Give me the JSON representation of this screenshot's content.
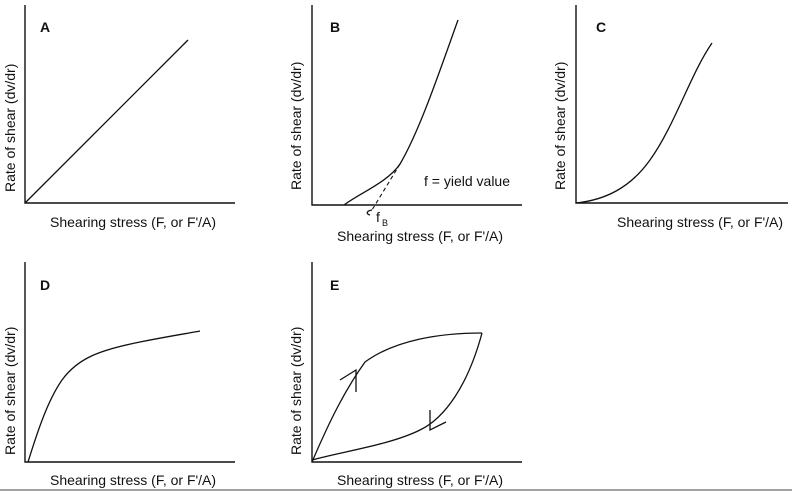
{
  "panels": [
    {
      "letter": "A",
      "ylabel": "Rate of shear (dv/dr)",
      "xlabel": "Shearing stress (F, or F'/A)"
    },
    {
      "letter": "B",
      "ylabel": "Rate of shear (dv/dr)",
      "xlabel": "Shearing stress (F, or F'/A)",
      "note": "f = yield value",
      "marker": "f",
      "marker_sub": "B"
    },
    {
      "letter": "C",
      "ylabel": "Rate of shear (dv/dr)",
      "xlabel": "Shearing stress (F, or F'/A)"
    },
    {
      "letter": "D",
      "ylabel": "Rate of shear (dv/dr)",
      "xlabel": "Shearing stress (F, or F'/A)"
    },
    {
      "letter": "E",
      "ylabel": "Rate of shear (dv/dr)",
      "xlabel": "Shearing stress (F, or F'/A)"
    }
  ]
}
